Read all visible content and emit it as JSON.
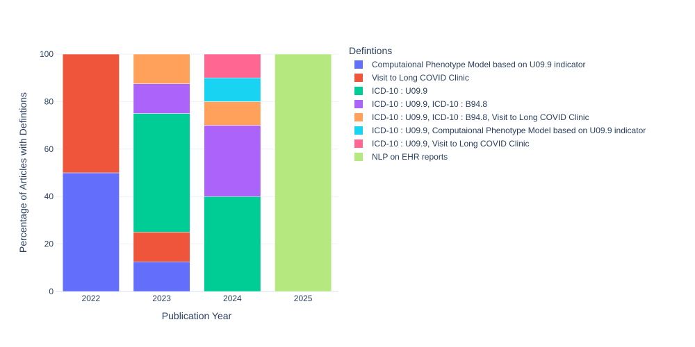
{
  "chart_data": {
    "type": "bar",
    "stacked": true,
    "categories": [
      "2022",
      "2023",
      "2024",
      "2025"
    ],
    "xlabel": "Publication Year",
    "ylabel": "Percentage of Articles with Defintions",
    "ylim": [
      0,
      100
    ],
    "yticks": [
      0,
      20,
      40,
      60,
      80,
      100
    ],
    "legend_title": "Defintions",
    "legend_position": "right",
    "series": [
      {
        "name": "Computaional Phenotype Model based on U09.9 indicator",
        "color": "#636efa",
        "values": [
          50,
          12.5,
          0,
          0
        ]
      },
      {
        "name": "Visit to Long COVID Clinic",
        "color": "#ef553b",
        "values": [
          50,
          12.5,
          0,
          0
        ]
      },
      {
        "name": "ICD-10 : U09.9",
        "color": "#00cc96",
        "values": [
          0,
          50,
          40,
          0
        ]
      },
      {
        "name": "ICD-10 : U09.9, ICD-10 : B94.8",
        "color": "#ab63fa",
        "values": [
          0,
          12.5,
          30,
          0
        ]
      },
      {
        "name": "ICD-10 : U09.9, ICD-10 : B94.8, Visit to Long COVID Clinic",
        "color": "#ffa15a",
        "values": [
          0,
          12.5,
          10,
          0
        ]
      },
      {
        "name": "ICD-10 : U09.9, Computaional Phenotype Model based on U09.9 indicator",
        "color": "#19d3f3",
        "values": [
          0,
          0,
          10,
          0
        ]
      },
      {
        "name": "ICD-10 : U09.9, Visit to Long COVID Clinic",
        "color": "#ff6692",
        "values": [
          0,
          0,
          10,
          0
        ]
      },
      {
        "name": "NLP on EHR reports",
        "color": "#b6e880",
        "values": [
          0,
          0,
          0,
          100
        ]
      }
    ]
  }
}
